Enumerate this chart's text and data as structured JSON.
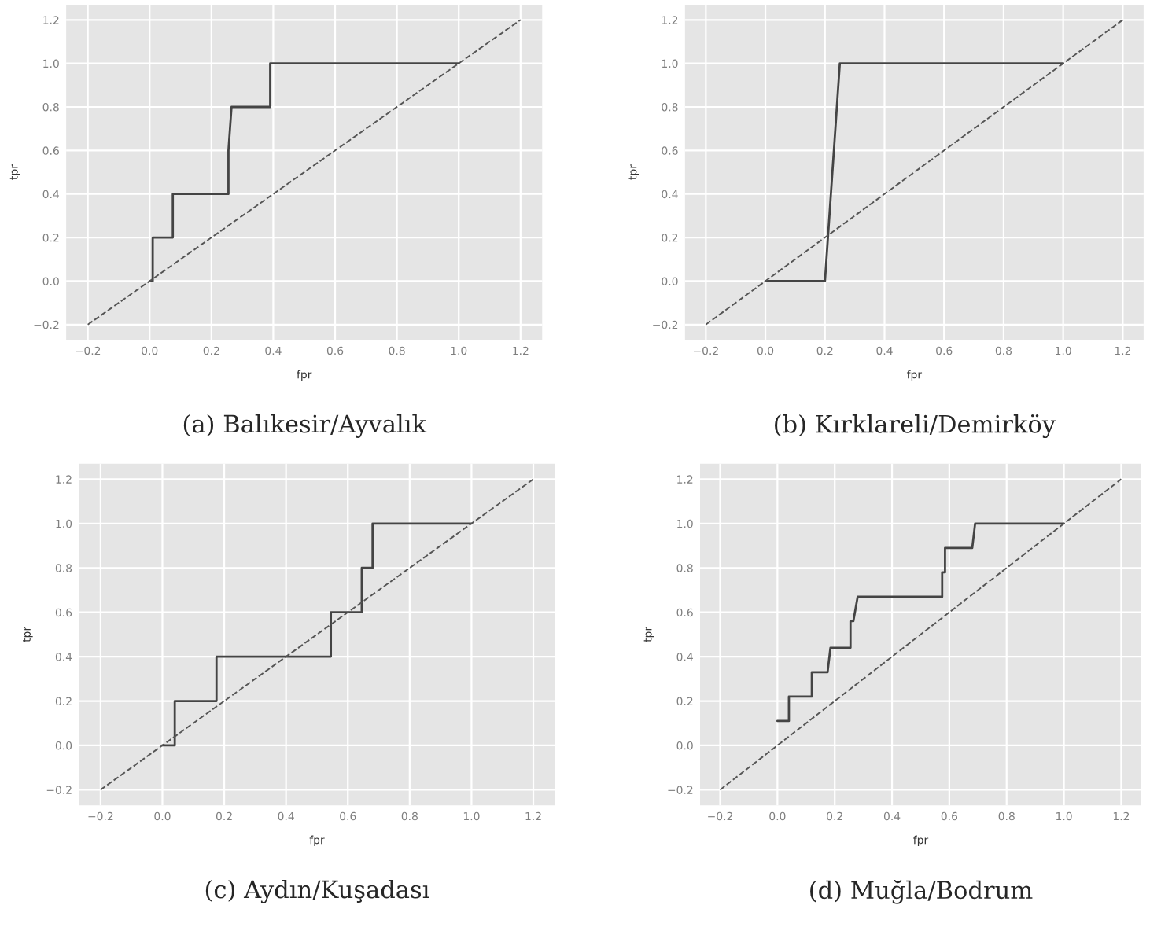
{
  "chart_data": [
    {
      "type": "line",
      "xlabel": "fpr",
      "ylabel": "tpr",
      "annotations": [
        "(a) Balıkesir/Ayvalık"
      ],
      "xlim": [
        -0.27,
        1.27
      ],
      "ylim": [
        -0.27,
        1.27
      ],
      "xticks": [
        {
          "value": -0.2,
          "label": "−0.2"
        },
        {
          "value": 0,
          "label": "0.0"
        },
        0.2,
        0.4,
        0.6,
        0.8,
        {
          "value": 1,
          "label": "1.0"
        },
        1.2
      ],
      "yticks": [
        {
          "value": -0.2,
          "label": "−0.2"
        },
        {
          "value": 0,
          "label": "0.0"
        },
        0.2,
        0.4,
        0.6,
        0.8,
        {
          "value": 1,
          "label": "1.0"
        },
        1.2
      ],
      "grid": true,
      "legend": false,
      "series": [
        {
          "color": "#444444",
          "line_style": "solid",
          "x": [
            0,
            0.01,
            0.01,
            0.075,
            0.075,
            0.255,
            0.255,
            0.265,
            0.39,
            0.39,
            1.0
          ],
          "values": [
            0,
            0,
            0.2,
            0.2,
            0.4,
            0.4,
            0.6,
            0.8,
            0.8,
            1.0,
            1.0
          ]
        },
        {
          "color": "#555555",
          "line_style": "dashed",
          "x": [
            -0.2,
            1.2
          ],
          "values": [
            -0.2,
            1.2
          ]
        }
      ]
    },
    {
      "type": "line",
      "xlabel": "fpr",
      "ylabel": "tpr",
      "annotations": [
        "(b) Kırklareli/Demirköy"
      ],
      "xlim": [
        -0.27,
        1.27
      ],
      "ylim": [
        -0.27,
        1.27
      ],
      "xticks": [
        {
          "value": -0.2,
          "label": "−0.2"
        },
        {
          "value": 0,
          "label": "0.0"
        },
        0.2,
        0.4,
        0.6,
        0.8,
        {
          "value": 1,
          "label": "1.0"
        },
        1.2
      ],
      "yticks": [
        {
          "value": -0.2,
          "label": "−0.2"
        },
        {
          "value": 0,
          "label": "0.0"
        },
        0.2,
        0.4,
        0.6,
        0.8,
        {
          "value": 1,
          "label": "1.0"
        },
        1.2
      ],
      "grid": true,
      "legend": false,
      "series": [
        {
          "color": "#444444",
          "line_style": "solid",
          "x": [
            0,
            0.2,
            0.25,
            1.0
          ],
          "values": [
            0,
            0,
            1.0,
            1.0
          ]
        },
        {
          "color": "#555555",
          "line_style": "dashed",
          "x": [
            -0.2,
            1.2
          ],
          "values": [
            -0.2,
            1.2
          ]
        }
      ]
    },
    {
      "type": "line",
      "xlabel": "fpr",
      "ylabel": "tpr",
      "annotations": [
        "(c) Aydın/Kuşadası"
      ],
      "xlim": [
        -0.27,
        1.27
      ],
      "ylim": [
        -0.27,
        1.27
      ],
      "xticks": [
        {
          "value": -0.2,
          "label": "−0.2"
        },
        {
          "value": 0,
          "label": "0.0"
        },
        0.2,
        0.4,
        0.6,
        0.8,
        {
          "value": 1,
          "label": "1.0"
        },
        1.2
      ],
      "yticks": [
        {
          "value": -0.2,
          "label": "−0.2"
        },
        {
          "value": 0,
          "label": "0.0"
        },
        0.2,
        0.4,
        0.6,
        0.8,
        {
          "value": 1,
          "label": "1.0"
        },
        1.2
      ],
      "grid": true,
      "legend": false,
      "series": [
        {
          "color": "#444444",
          "line_style": "solid",
          "x": [
            0,
            0.04,
            0.04,
            0.175,
            0.175,
            0.545,
            0.545,
            0.645,
            0.645,
            0.68,
            0.68,
            1.0
          ],
          "values": [
            0,
            0,
            0.2,
            0.2,
            0.4,
            0.4,
            0.6,
            0.6,
            0.8,
            0.8,
            1.0,
            1.0
          ]
        },
        {
          "color": "#555555",
          "line_style": "dashed",
          "x": [
            -0.2,
            1.2
          ],
          "values": [
            -0.2,
            1.2
          ]
        }
      ]
    },
    {
      "type": "line",
      "xlabel": "fpr",
      "ylabel": "tpr",
      "annotations": [
        "(d) Muğla/Bodrum"
      ],
      "xlim": [
        -0.27,
        1.27
      ],
      "ylim": [
        -0.27,
        1.27
      ],
      "xticks": [
        {
          "value": -0.2,
          "label": "−0.2"
        },
        {
          "value": 0,
          "label": "0.0"
        },
        0.2,
        0.4,
        0.6,
        0.8,
        {
          "value": 1,
          "label": "1.0"
        },
        1.2
      ],
      "yticks": [
        {
          "value": -0.2,
          "label": "−0.2"
        },
        {
          "value": 0,
          "label": "0.0"
        },
        0.2,
        0.4,
        0.6,
        0.8,
        {
          "value": 1,
          "label": "1.0"
        },
        1.2
      ],
      "grid": true,
      "legend": false,
      "series": [
        {
          "color": "#444444",
          "line_style": "solid",
          "x": [
            0,
            0.04,
            0.04,
            0.12,
            0.12,
            0.175,
            0.185,
            0.255,
            0.255,
            0.265,
            0.28,
            0.575,
            0.575,
            0.585,
            0.585,
            0.68,
            0.69,
            1.0
          ],
          "values": [
            0.11,
            0.11,
            0.22,
            0.22,
            0.33,
            0.33,
            0.44,
            0.44,
            0.56,
            0.56,
            0.67,
            0.67,
            0.78,
            0.78,
            0.89,
            0.89,
            1.0,
            1.0
          ]
        },
        {
          "color": "#555555",
          "line_style": "dashed",
          "x": [
            -0.2,
            1.2
          ],
          "values": [
            -0.2,
            1.2
          ]
        }
      ]
    }
  ]
}
